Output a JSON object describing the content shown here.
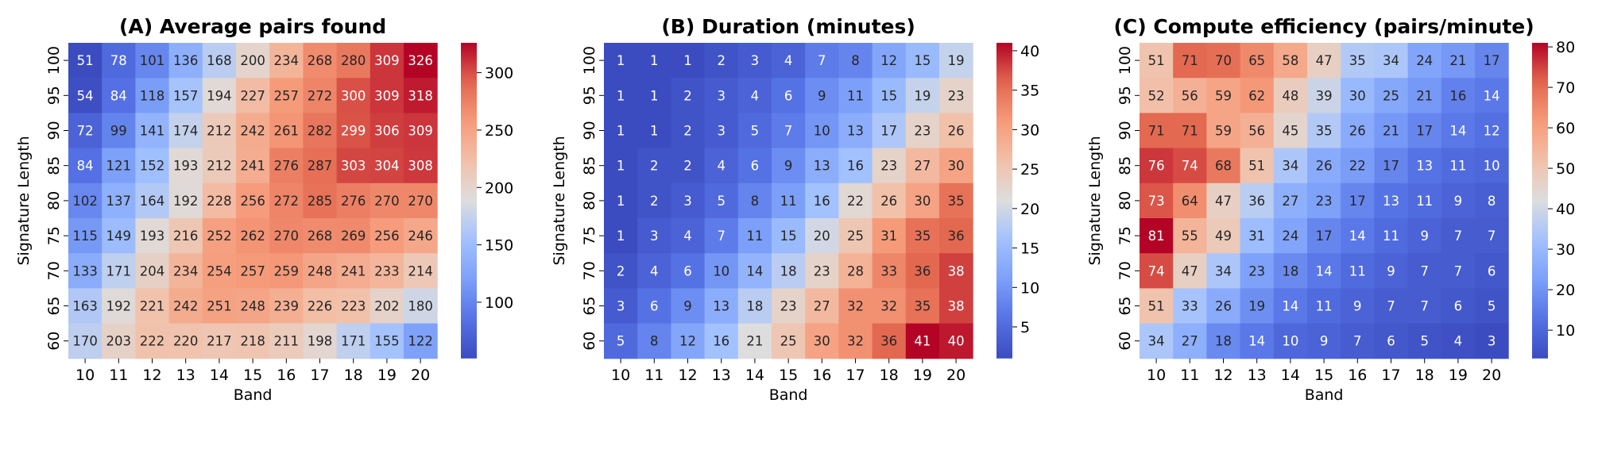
{
  "chart_data": [
    {
      "type": "heatmap",
      "title": "(A) Average pairs found",
      "xlabel": "Band",
      "ylabel": "Signature Length",
      "x": [
        10,
        11,
        12,
        13,
        14,
        15,
        16,
        17,
        18,
        19,
        20
      ],
      "y": [
        100,
        95,
        90,
        85,
        80,
        75,
        70,
        65,
        60
      ],
      "values": [
        [
          51,
          78,
          101,
          136,
          168,
          200,
          234,
          268,
          280,
          309,
          326
        ],
        [
          54,
          84,
          118,
          157,
          194,
          227,
          257,
          272,
          300,
          309,
          318
        ],
        [
          72,
          99,
          141,
          174,
          212,
          242,
          261,
          282,
          299,
          306,
          309
        ],
        [
          84,
          121,
          152,
          193,
          212,
          241,
          276,
          287,
          303,
          304,
          308
        ],
        [
          102,
          137,
          164,
          192,
          228,
          256,
          272,
          285,
          276,
          270,
          270
        ],
        [
          115,
          149,
          193,
          216,
          252,
          262,
          270,
          268,
          269,
          256,
          246
        ],
        [
          133,
          171,
          204,
          234,
          254,
          257,
          259,
          248,
          241,
          233,
          214
        ],
        [
          163,
          192,
          221,
          242,
          251,
          248,
          239,
          226,
          223,
          202,
          180
        ],
        [
          170,
          203,
          222,
          220,
          217,
          218,
          211,
          198,
          171,
          155,
          122
        ]
      ],
      "vmin": 51,
      "vmax": 326,
      "colorbar_ticks": [
        100,
        150,
        200,
        250,
        300
      ],
      "colormap": "coolwarm"
    },
    {
      "type": "heatmap",
      "title": "(B) Duration (minutes)",
      "xlabel": "Band",
      "ylabel": "Signature Length",
      "x": [
        10,
        11,
        12,
        13,
        14,
        15,
        16,
        17,
        18,
        19,
        20
      ],
      "y": [
        100,
        95,
        90,
        85,
        80,
        75,
        70,
        65,
        60
      ],
      "values": [
        [
          1,
          1,
          1,
          2,
          3,
          4,
          7,
          8,
          12,
          15,
          19
        ],
        [
          1,
          1,
          2,
          3,
          4,
          6,
          9,
          11,
          15,
          19,
          23
        ],
        [
          1,
          1,
          2,
          3,
          5,
          7,
          10,
          13,
          17,
          23,
          26
        ],
        [
          1,
          2,
          2,
          4,
          6,
          9,
          13,
          16,
          23,
          27,
          30
        ],
        [
          1,
          2,
          3,
          5,
          8,
          11,
          16,
          22,
          26,
          30,
          35
        ],
        [
          1,
          3,
          4,
          7,
          11,
          15,
          20,
          25,
          31,
          35,
          36
        ],
        [
          2,
          4,
          6,
          10,
          14,
          18,
          23,
          28,
          33,
          36,
          38
        ],
        [
          3,
          6,
          9,
          13,
          18,
          23,
          27,
          32,
          32,
          35,
          38
        ],
        [
          5,
          8,
          12,
          16,
          21,
          25,
          30,
          32,
          36,
          41,
          40
        ]
      ],
      "vmin": 1,
      "vmax": 41,
      "colorbar_ticks": [
        5,
        10,
        15,
        20,
        25,
        30,
        35,
        40
      ],
      "colormap": "coolwarm"
    },
    {
      "type": "heatmap",
      "title": "(C) Compute efficiency (pairs/minute)",
      "xlabel": "Band",
      "ylabel": "Signature Length",
      "x": [
        10,
        11,
        12,
        13,
        14,
        15,
        16,
        17,
        18,
        19,
        20
      ],
      "y": [
        100,
        95,
        90,
        85,
        80,
        75,
        70,
        65,
        60
      ],
      "values": [
        [
          51,
          71,
          70,
          65,
          58,
          47,
          35,
          34,
          24,
          21,
          17
        ],
        [
          52,
          56,
          59,
          62,
          48,
          39,
          30,
          25,
          21,
          16,
          14
        ],
        [
          71,
          71,
          59,
          56,
          45,
          35,
          26,
          21,
          17,
          14,
          12
        ],
        [
          76,
          74,
          68,
          51,
          34,
          26,
          22,
          17,
          13,
          11,
          10
        ],
        [
          73,
          64,
          47,
          36,
          27,
          23,
          17,
          13,
          11,
          9,
          8
        ],
        [
          81,
          55,
          49,
          31,
          24,
          17,
          14,
          11,
          9,
          7,
          7
        ],
        [
          74,
          47,
          34,
          23,
          18,
          14,
          11,
          9,
          7,
          7,
          6
        ],
        [
          51,
          33,
          26,
          19,
          14,
          11,
          9,
          7,
          7,
          6,
          5
        ],
        [
          34,
          27,
          18,
          14,
          10,
          9,
          7,
          6,
          5,
          4,
          3
        ]
      ],
      "vmin": 3,
      "vmax": 81,
      "colorbar_ticks": [
        10,
        20,
        30,
        40,
        50,
        60,
        70,
        80
      ],
      "colormap": "coolwarm"
    }
  ]
}
